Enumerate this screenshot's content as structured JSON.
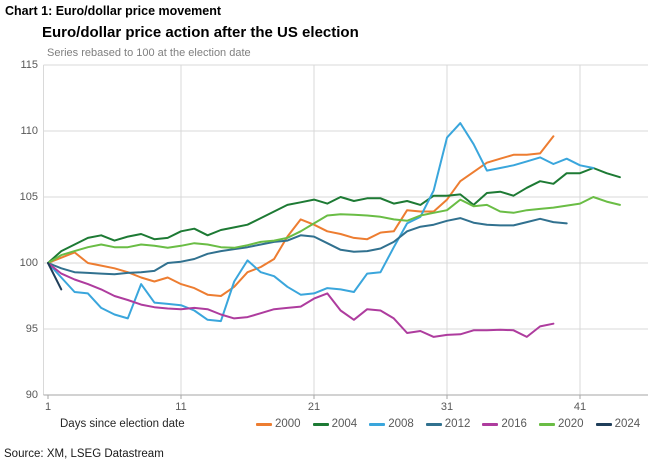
{
  "header": "Chart 1: Euro/dollar price movement",
  "source": "Source: XM, LSEG Datastream",
  "x_axis": {
    "label": "Days since election date",
    "ticks": [
      "1",
      "11",
      "21",
      "31",
      "41"
    ]
  },
  "y_axis": {
    "ticks": [
      "115",
      "110",
      "105",
      "100",
      "95",
      "90"
    ]
  },
  "chart_data": {
    "type": "line",
    "title": "Euro/dollar price action after the US election",
    "subtitle": "Series rebased to 100 at the election date",
    "xlabel": "Days since election date",
    "x_ticks": [
      1,
      11,
      21,
      31,
      41
    ],
    "xlim": [
      1,
      46
    ],
    "ylim": [
      90,
      115
    ],
    "y_ticks": [
      90,
      95,
      100,
      105,
      110,
      115
    ],
    "grid": true,
    "legend_position": "bottom",
    "x_start_day": 1,
    "series": [
      {
        "name": "2000",
        "color": "#ED7D31",
        "values": [
          100,
          100.4,
          100.8,
          100.0,
          99.8,
          99.6,
          99.3,
          98.9,
          98.6,
          98.9,
          98.4,
          98.1,
          97.6,
          97.5,
          98.2,
          99.3,
          99.7,
          100.3,
          102.0,
          103.3,
          102.9,
          102.4,
          102.2,
          101.9,
          101.8,
          102.3,
          102.4,
          104.0,
          103.9,
          103.9,
          104.8,
          106.2,
          106.9,
          107.6,
          107.9,
          108.2,
          108.2,
          108.3,
          109.6
        ]
      },
      {
        "name": "2004",
        "color": "#1D7A34",
        "values": [
          100,
          100.9,
          101.4,
          101.9,
          102.1,
          101.7,
          102.0,
          102.2,
          101.8,
          101.9,
          102.4,
          102.6,
          102.1,
          102.5,
          102.7,
          102.9,
          103.4,
          103.9,
          104.4,
          104.6,
          104.8,
          104.5,
          105.0,
          104.7,
          104.9,
          104.9,
          104.5,
          104.7,
          104.4,
          105.1,
          105.1,
          105.2,
          104.4,
          105.3,
          105.4,
          105.1,
          105.7,
          106.2,
          106.0,
          106.8,
          106.8,
          107.2,
          106.8,
          106.5
        ]
      },
      {
        "name": "2008",
        "color": "#3AA6DC",
        "values": [
          100,
          98.9,
          97.8,
          97.7,
          96.6,
          96.1,
          95.8,
          98.4,
          97.0,
          96.9,
          96.8,
          96.4,
          95.7,
          95.6,
          98.6,
          100.2,
          99.3,
          99.0,
          98.2,
          97.6,
          97.7,
          98.1,
          98.0,
          97.8,
          99.2,
          99.3,
          101.2,
          103.0,
          103.5,
          105.5,
          109.5,
          110.6,
          109.0,
          107.0,
          107.2,
          107.4,
          107.7,
          108.0,
          107.5,
          107.9,
          107.4,
          107.2
        ]
      },
      {
        "name": "2012",
        "color": "#31718F",
        "values": [
          100,
          99.6,
          99.3,
          99.25,
          99.2,
          99.15,
          99.25,
          99.3,
          99.4,
          100.0,
          100.1,
          100.3,
          100.7,
          100.9,
          101.05,
          101.2,
          101.4,
          101.6,
          101.7,
          102.1,
          102.0,
          101.5,
          101.0,
          100.85,
          100.9,
          101.1,
          101.6,
          102.4,
          102.75,
          102.9,
          103.2,
          103.4,
          103.05,
          102.9,
          102.85,
          102.85,
          103.1,
          103.35,
          103.1,
          103.0
        ]
      },
      {
        "name": "2016",
        "color": "#AE3C9E",
        "values": [
          100,
          99.2,
          98.75,
          98.4,
          98.0,
          97.5,
          97.2,
          96.85,
          96.65,
          96.55,
          96.5,
          96.6,
          96.5,
          96.1,
          95.8,
          95.9,
          96.2,
          96.5,
          96.6,
          96.7,
          97.3,
          97.7,
          96.4,
          95.7,
          96.5,
          96.4,
          95.8,
          94.7,
          94.85,
          94.4,
          94.55,
          94.6,
          94.9,
          94.9,
          94.95,
          94.9,
          94.4,
          95.2,
          95.4
        ]
      },
      {
        "name": "2020",
        "color": "#6ABD45",
        "values": [
          100,
          100.6,
          100.9,
          101.2,
          101.4,
          101.2,
          101.2,
          101.4,
          101.3,
          101.15,
          101.3,
          101.5,
          101.4,
          101.2,
          101.15,
          101.35,
          101.6,
          101.7,
          101.9,
          102.4,
          103.0,
          103.6,
          103.7,
          103.65,
          103.6,
          103.5,
          103.3,
          103.2,
          103.6,
          103.8,
          104.0,
          104.8,
          104.3,
          104.4,
          103.9,
          103.8,
          104.0,
          104.1,
          104.2,
          104.35,
          104.5,
          105.0,
          104.65,
          104.4
        ]
      },
      {
        "name": "2024",
        "color": "#1F3E5A",
        "values": [
          100,
          98.0
        ]
      }
    ]
  }
}
